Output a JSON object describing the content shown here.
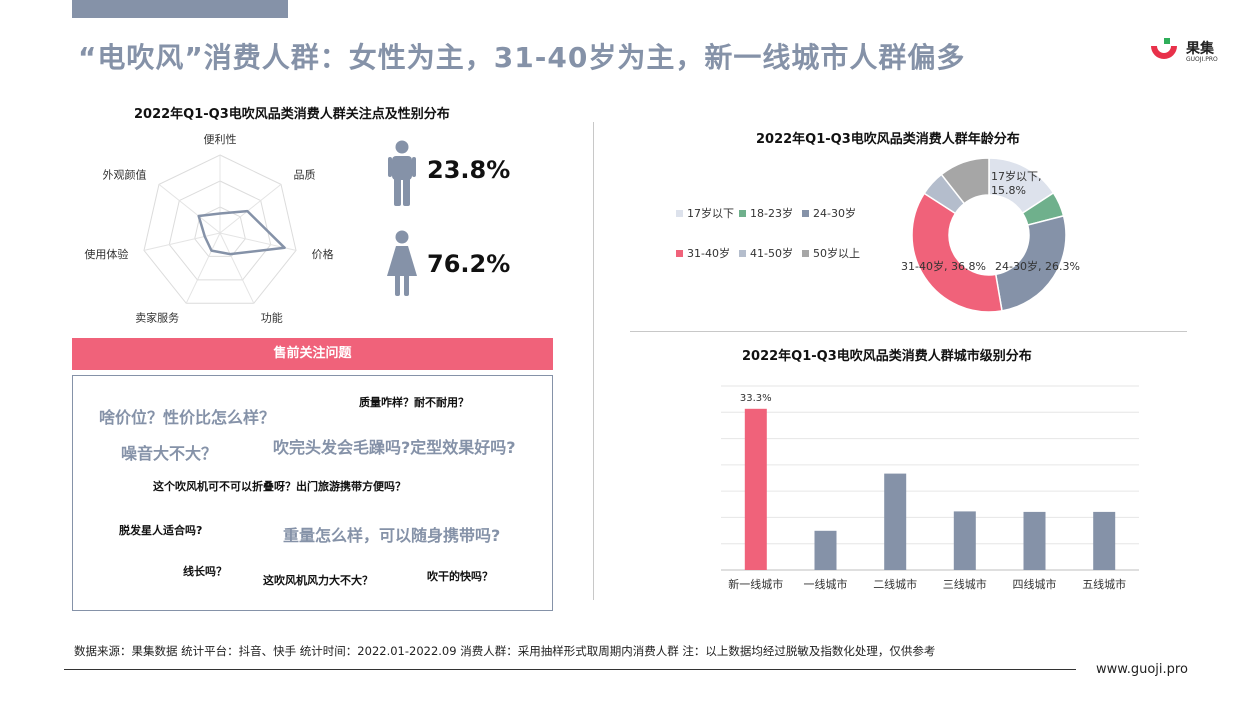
{
  "page": {
    "title": "“电吹风”消费人群：女性为主，31-40岁为主，新一线城市人群偏多"
  },
  "logo": {
    "name": "果集",
    "sub": "GUOJI.PRO"
  },
  "gender": {
    "male_pct": "23.8%",
    "female_pct": "76.2%"
  },
  "prepurchase": {
    "header": "售前关注问题",
    "questions": [
      "啥价位？性价比怎么样？",
      "质量咋样？耐不耐用？",
      "噪音大不大？",
      "吹完头发会毛躁吗?定型效果好吗?",
      "这个吹风机可不可以折叠呀？出门旅游携带方便吗？",
      "脱发星人适合吗?",
      "重量怎么样，可以随身携带吗?",
      "线长吗？",
      "这吹风机风力大不大？",
      "吹干的快吗？"
    ]
  },
  "footer": {
    "text": "数据来源：果集数据      统计平台：抖音、快手      统计时间：2022.01-2022.09    消费人群：采用抽样形式取周期内消费人群    注：以上数据均经过脱敏及指数化处理，仅供参考",
    "site": "www.guoji.pro"
  },
  "chart_data": [
    {
      "type": "radar",
      "title": "2022年Q1-Q3电吹风品类消费人群关注点及性别分布",
      "axes": [
        "便利性",
        "品质",
        "价格",
        "功能",
        "卖家服务",
        "使用体验",
        "外观颜值"
      ],
      "values": [
        0.25,
        0.45,
        0.85,
        0.3,
        0.25,
        0.2,
        0.35
      ],
      "rmax": 1,
      "grid": true,
      "color": "#8592a8"
    },
    {
      "type": "pie",
      "title": "2022年Q1-Q3电吹风品类消费人群年龄分布",
      "donut": true,
      "legend": "left",
      "slices": [
        {
          "label": "17岁以下",
          "value": 15.8,
          "color": "#dde2ec",
          "data_label": "17岁以下, 15.8%"
        },
        {
          "label": "18-23岁",
          "value": 5.2,
          "color": "#6fb08c",
          "data_label": ""
        },
        {
          "label": "24-30岁",
          "value": 26.3,
          "color": "#8592a8",
          "data_label": "24-30岁, 26.3%"
        },
        {
          "label": "31-40岁",
          "value": 36.8,
          "color": "#f0627a",
          "data_label": "31-40岁, 36.8%"
        },
        {
          "label": "41-50岁",
          "value": 5.3,
          "color": "#b4bdcc",
          "data_label": ""
        },
        {
          "label": "50岁以上",
          "value": 10.6,
          "color": "#a6a6a6",
          "data_label": ""
        }
      ]
    },
    {
      "type": "bar",
      "title": "2022年Q1-Q3电吹风品类消费人群城市级别分布",
      "categories": [
        "新一线城市",
        "一线城市",
        "二线城市",
        "三线城市",
        "四线城市",
        "五线城市"
      ],
      "values": [
        33.3,
        8.1,
        19.9,
        12.1,
        12.0,
        12.0
      ],
      "data_labels": [
        "33.3%",
        "",
        "",
        "",
        "",
        ""
      ],
      "colors": [
        "#f0627a",
        "#8592a8",
        "#8592a8",
        "#8592a8",
        "#8592a8",
        "#8592a8"
      ],
      "ylim": [
        0,
        38
      ],
      "grid": true,
      "xlabel": "",
      "ylabel": ""
    }
  ]
}
